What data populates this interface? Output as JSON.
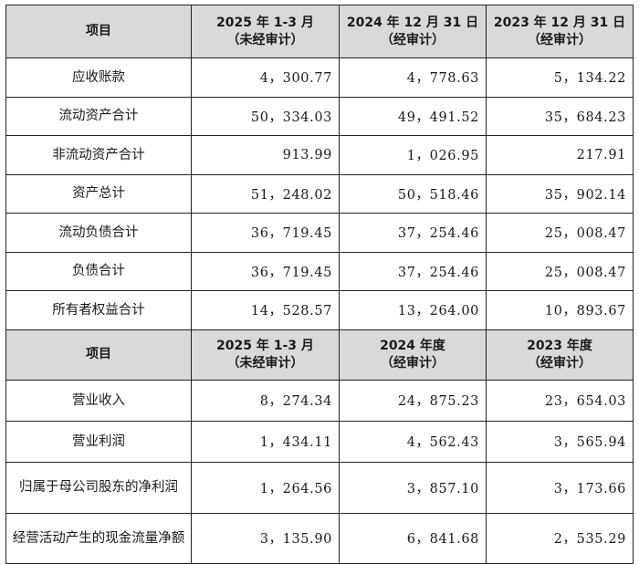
{
  "balance_header": {
    "item": "项目",
    "col1_line1": "2025 年 1-3 月",
    "col1_line2": "（未经审计）",
    "col2_line1": "2024 年 12 月 31 日",
    "col2_line2": "（经审计）",
    "col3_line1": "2023 年 12 月 31 日",
    "col3_line2": "（经审计）"
  },
  "balance_rows": [
    {
      "label": "应收账款",
      "v1": "4，300.77",
      "v2": "4，778.63",
      "v3": "5，134.22"
    },
    {
      "label": "流动资产合计",
      "v1": "50，334.03",
      "v2": "49，491.52",
      "v3": "35，684.23"
    },
    {
      "label": "非流动资产合计",
      "v1": "913.99",
      "v2": "1，026.95",
      "v3": "217.91"
    },
    {
      "label": "资产总计",
      "v1": "51，248.02",
      "v2": "50，518.46",
      "v3": "35，902.14"
    },
    {
      "label": "流动负债合计",
      "v1": "36，719.45",
      "v2": "37，254.46",
      "v3": "25，008.47"
    },
    {
      "label": "负债合计",
      "v1": "36，719.45",
      "v2": "37，254.46",
      "v3": "25，008.47"
    },
    {
      "label": "所有者权益合计",
      "v1": "14，528.57",
      "v2": "13，264.00",
      "v3": "10，893.67"
    }
  ],
  "income_header": {
    "item": "项目",
    "col1_line1": "2025 年 1-3 月",
    "col1_line2": "（未经审计）",
    "col2_line1": "2024 年度",
    "col2_line2": "（经审计）",
    "col3_line1": "2023 年度",
    "col3_line2": "（经审计）"
  },
  "income_rows": [
    {
      "label": "营业收入",
      "v1": "8，274.34",
      "v2": "24，875.23",
      "v3": "23，654.03"
    },
    {
      "label": "营业利润",
      "v1": "1，434.11",
      "v2": "4，562.43",
      "v3": "3，565.94"
    },
    {
      "label": "归属于母公司股东的净利润",
      "v1": "1，264.56",
      "v2": "3，857.10",
      "v3": "3，173.66"
    },
    {
      "label": "经营活动产生的现金流量净额",
      "v1": "3，135.90",
      "v2": "6，841.68",
      "v3": "2，535.29"
    }
  ]
}
